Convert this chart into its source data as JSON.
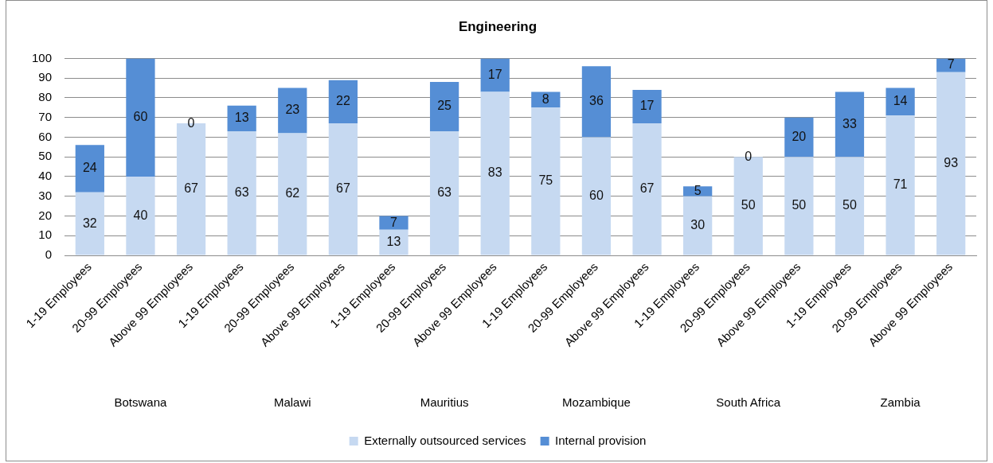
{
  "chart_data": {
    "type": "bar",
    "title": "Engineering",
    "categories": [
      "1-19 Employees",
      "20-99 Employees",
      "Above 99 Employees",
      "1-19 Employees",
      "20-99 Employees",
      "Above 99 Employees",
      "1-19 Employees",
      "20-99 Employees",
      "Above 99 Employees",
      "1-19 Employees",
      "20-99 Employees",
      "Above 99 Employees",
      "1-19 Employees",
      "20-99 Employees",
      "Above 99 Employees",
      "1-19 Employees",
      "20-99 Employees",
      "Above 99 Employees"
    ],
    "series": [
      {
        "name": "Externally outsourced services",
        "color": "#c6d9f1",
        "values": [
          32,
          40,
          67,
          63,
          62,
          67,
          13,
          63,
          83,
          75,
          60,
          67,
          30,
          50,
          50,
          50,
          71,
          93
        ]
      },
      {
        "name": "Internal provision",
        "color": "#558ed5",
        "values": [
          24,
          60,
          0,
          13,
          23,
          22,
          7,
          25,
          17,
          8,
          36,
          17,
          5,
          0,
          20,
          33,
          14,
          7
        ]
      }
    ],
    "stacked": true,
    "ylim": [
      0,
      100
    ],
    "yticks": [
      0,
      10,
      20,
      30,
      40,
      50,
      60,
      70,
      80,
      90,
      100
    ],
    "grid": "y",
    "legend": "bottom",
    "data_labels": true,
    "annotations": [
      "Botswana",
      "Malawi",
      "Mauritius",
      "Mozambique",
      "South Africa",
      "Zambia"
    ]
  }
}
